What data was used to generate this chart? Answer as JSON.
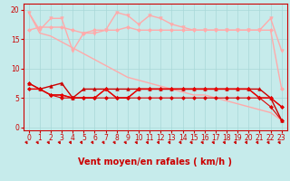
{
  "x": [
    0,
    1,
    2,
    3,
    4,
    5,
    6,
    7,
    8,
    9,
    10,
    11,
    12,
    13,
    14,
    15,
    16,
    17,
    18,
    19,
    20,
    21,
    22,
    23
  ],
  "background_color": "#c6ebeb",
  "grid_color": "#a8d8d8",
  "xlabel": "Vent moyen/en rafales ( km/h )",
  "ylim": [
    -0.5,
    21
  ],
  "xlim": [
    -0.5,
    23.5
  ],
  "yticks": [
    0,
    5,
    10,
    15,
    20
  ],
  "lines": [
    {
      "y": [
        19.5,
        16.5,
        18.5,
        18.5,
        13,
        16,
        16,
        16.5,
        19.5,
        19,
        17.5,
        19,
        18.5,
        17.5,
        17,
        16.5,
        16.5,
        16.5,
        16.5,
        16.5,
        16.5,
        16.5,
        18.5,
        13
      ],
      "color": "#ffaaaa",
      "marker": "v",
      "markersize": 2.5,
      "linewidth": 1.0
    },
    {
      "y": [
        16.5,
        17,
        17,
        17,
        16.5,
        16,
        16.5,
        16.5,
        16.5,
        17,
        16.5,
        16.5,
        16.5,
        16.5,
        16.5,
        16.5,
        16.5,
        16.5,
        16.5,
        16.5,
        16.5,
        16.5,
        16.5,
        6.5
      ],
      "color": "#ffaaaa",
      "marker": "D",
      "markersize": 2.0,
      "linewidth": 1.0
    },
    {
      "y": [
        19.5,
        16,
        15.5,
        14.5,
        13.5,
        12.5,
        11.5,
        10.5,
        9.5,
        8.5,
        8.0,
        7.5,
        7.0,
        6.5,
        6.0,
        5.5,
        5.5,
        5.0,
        4.5,
        4.0,
        3.5,
        3.0,
        2.5,
        1.2
      ],
      "color": "#ffaaaa",
      "marker": null,
      "markersize": 0,
      "linewidth": 1.0
    },
    {
      "y": [
        7.5,
        6.5,
        7.0,
        7.5,
        5.0,
        6.5,
        6.5,
        6.5,
        6.5,
        6.5,
        6.5,
        6.5,
        6.5,
        6.5,
        6.5,
        6.5,
        6.5,
        6.5,
        6.5,
        6.5,
        6.5,
        6.5,
        5.0,
        1.2
      ],
      "color": "#cc0000",
      "marker": "^",
      "markersize": 2.5,
      "linewidth": 1.0
    },
    {
      "y": [
        6.5,
        6.5,
        5.5,
        5.5,
        5.0,
        5.0,
        5.0,
        6.5,
        5.0,
        5.0,
        6.5,
        6.5,
        6.5,
        6.5,
        6.5,
        6.5,
        6.5,
        6.5,
        6.5,
        6.5,
        6.5,
        5.0,
        5.0,
        3.5
      ],
      "color": "#cc0000",
      "marker": "D",
      "markersize": 2.0,
      "linewidth": 1.0
    },
    {
      "y": [
        6.5,
        6.5,
        5.5,
        5.5,
        5.0,
        5.0,
        5.0,
        6.5,
        5.0,
        5.0,
        6.5,
        6.5,
        6.5,
        6.5,
        6.5,
        6.5,
        6.5,
        6.5,
        6.5,
        6.5,
        6.5,
        5.0,
        5.0,
        3.5
      ],
      "color": "#ee0000",
      "marker": "s",
      "markersize": 2.0,
      "linewidth": 0.8
    },
    {
      "y": [
        7.5,
        6.5,
        5.5,
        5.0,
        5.0,
        5.0,
        5.0,
        5.0,
        5.0,
        5.0,
        5.0,
        5.0,
        5.0,
        5.0,
        5.0,
        5.0,
        5.0,
        5.0,
        5.0,
        5.0,
        5.0,
        5.0,
        3.5,
        1.2
      ],
      "color": "#dd0000",
      "marker": "D",
      "markersize": 2.0,
      "linewidth": 0.8
    }
  ],
  "tick_label_color": "#cc0000",
  "axis_label_color": "#cc0000",
  "tick_fontsize": 5.5,
  "xlabel_fontsize": 7.0,
  "arrow_color": "#cc0000"
}
